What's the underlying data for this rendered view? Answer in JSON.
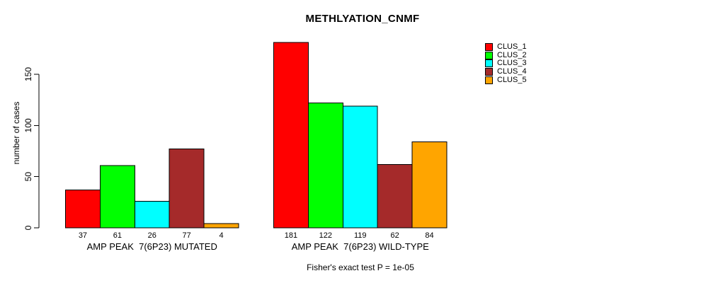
{
  "chart_data": {
    "type": "bar",
    "title": "METHLYATION_CNMF",
    "ylabel": "number of cases",
    "footnote": "Fisher's exact test P = 1e-05",
    "yticks": [
      0,
      50,
      100,
      150
    ],
    "ylim": [
      0,
      185
    ],
    "grid": false,
    "legend_position": "top-right",
    "bar_value_labels_shown": true,
    "categories": [
      "AMP PEAK  7(6P23) MUTATED",
      "AMP PEAK  7(6P23) WILD-TYPE"
    ],
    "series": [
      {
        "name": "CLUS_1",
        "color": "#FF0000",
        "values": [
          37,
          181
        ]
      },
      {
        "name": "CLUS_2",
        "color": "#00FF00",
        "values": [
          61,
          122
        ]
      },
      {
        "name": "CLUS_3",
        "color": "#00FFFF",
        "values": [
          26,
          119
        ]
      },
      {
        "name": "CLUS_4",
        "color": "#A52A2A",
        "values": [
          77,
          62
        ]
      },
      {
        "name": "CLUS_5",
        "color": "#FFA500",
        "values": [
          4,
          84
        ]
      }
    ]
  }
}
